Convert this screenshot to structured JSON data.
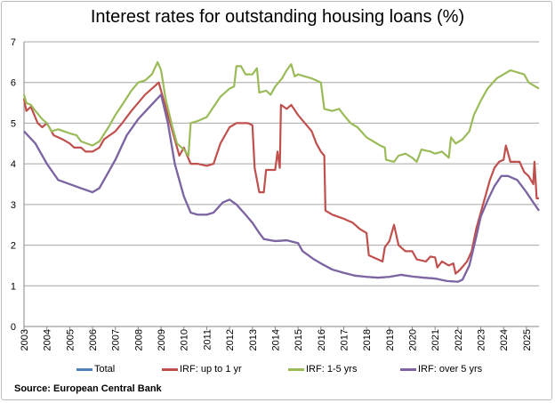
{
  "chart_data": {
    "type": "line",
    "title": "Interest rates for outstanding housing loans (%)",
    "source": "Source: European Central Bank",
    "xlabel": "",
    "ylabel": "",
    "ylim": [
      0,
      7
    ],
    "xlim": [
      2003,
      2025.55
    ],
    "yticks": [
      "0",
      "1",
      "2",
      "3",
      "4",
      "5",
      "6",
      "7"
    ],
    "xticks": [
      "2003",
      "2004",
      "2005",
      "2006",
      "2007",
      "2008",
      "2009",
      "2010",
      "2011",
      "2012",
      "2013",
      "2014",
      "2015",
      "2016",
      "2017",
      "2018",
      "2019",
      "2020",
      "2021",
      "2022",
      "2023",
      "2024",
      "2025"
    ],
    "grid": true,
    "legend_position": "bottom",
    "series": [
      {
        "name": "Total",
        "color": "#4f81bd",
        "x": [
          2003.0,
          2003.5,
          2004.0,
          2004.5,
          2005.0,
          2005.5,
          2006.0,
          2006.3,
          2006.7,
          2007.0,
          2007.5,
          2008.0,
          2008.5,
          2009.0,
          2009.3,
          2009.6,
          2010.0,
          2010.3,
          2010.6,
          2011.0,
          2011.3,
          2011.7,
          2012.0,
          2012.3,
          2012.7,
          2013.0,
          2013.3,
          2013.5,
          2014.0,
          2014.5,
          2015.0,
          2015.2,
          2015.7,
          2016.0,
          2016.5,
          2017.0,
          2017.5,
          2018.0,
          2018.5,
          2019.0,
          2019.5,
          2020.0,
          2020.5,
          2021.0,
          2021.5,
          2022.0,
          2022.2,
          2022.5,
          2022.8,
          2023.0,
          2023.3,
          2023.6,
          2023.9,
          2024.2,
          2024.6,
          2025.0,
          2025.3,
          2025.55
        ],
        "y": [
          4.8,
          4.5,
          4.0,
          3.6,
          3.5,
          3.4,
          3.3,
          3.4,
          3.8,
          4.1,
          4.7,
          5.1,
          5.4,
          5.7,
          5.0,
          4.0,
          3.2,
          2.8,
          2.75,
          2.75,
          2.8,
          3.05,
          3.12,
          3.0,
          2.75,
          2.55,
          2.3,
          2.15,
          2.1,
          2.12,
          2.05,
          1.85,
          1.65,
          1.55,
          1.4,
          1.32,
          1.25,
          1.22,
          1.2,
          1.22,
          1.27,
          1.23,
          1.2,
          1.18,
          1.12,
          1.1,
          1.15,
          1.5,
          2.2,
          2.7,
          3.1,
          3.45,
          3.7,
          3.7,
          3.6,
          3.3,
          3.05,
          2.85
        ]
      },
      {
        "name": "IRF: up to 1 yr",
        "color": "#c0504d",
        "x": [
          2003.0,
          2003.1,
          2003.3,
          2003.6,
          2003.8,
          2004.0,
          2004.3,
          2004.7,
          2005.0,
          2005.2,
          2005.5,
          2005.7,
          2006.0,
          2006.3,
          2006.5,
          2007.0,
          2007.3,
          2007.7,
          2008.0,
          2008.3,
          2008.7,
          2008.9,
          2009.0,
          2009.3,
          2009.6,
          2009.8,
          2010.0,
          2010.3,
          2010.6,
          2011.0,
          2011.3,
          2011.6,
          2012.0,
          2012.3,
          2012.5,
          2012.8,
          2013.0,
          2013.1,
          2013.3,
          2013.5,
          2013.6,
          2014.0,
          2014.1,
          2014.2,
          2014.25,
          2014.5,
          2014.7,
          2015.0,
          2015.3,
          2015.6,
          2015.8,
          2016.0,
          2016.15,
          2016.2,
          2016.5,
          2017.0,
          2017.4,
          2017.7,
          2018.0,
          2018.1,
          2018.5,
          2018.7,
          2018.8,
          2019.0,
          2019.2,
          2019.4,
          2019.7,
          2020.0,
          2020.2,
          2020.6,
          2020.8,
          2021.0,
          2021.1,
          2021.3,
          2021.6,
          2021.8,
          2021.9,
          2022.1,
          2022.4,
          2022.6,
          2022.8,
          2023.0,
          2023.2,
          2023.4,
          2023.6,
          2023.8,
          2024.0,
          2024.1,
          2024.3,
          2024.7,
          2024.9,
          2025.1,
          2025.3,
          2025.35,
          2025.45,
          2025.55
        ],
        "y": [
          5.6,
          5.3,
          5.4,
          5.0,
          4.9,
          5.0,
          4.7,
          4.6,
          4.5,
          4.4,
          4.4,
          4.3,
          4.3,
          4.4,
          4.6,
          4.8,
          5.0,
          5.3,
          5.5,
          5.7,
          5.9,
          6.0,
          5.8,
          5.2,
          4.6,
          4.2,
          4.4,
          4.0,
          4.0,
          3.95,
          4.0,
          4.5,
          4.9,
          5.0,
          5.0,
          5.0,
          4.95,
          3.9,
          3.3,
          3.3,
          3.85,
          3.85,
          4.3,
          3.9,
          5.45,
          5.35,
          5.45,
          5.2,
          5.0,
          4.8,
          4.5,
          4.3,
          4.2,
          2.85,
          2.75,
          2.65,
          2.55,
          2.4,
          2.3,
          1.75,
          1.65,
          1.6,
          1.95,
          2.1,
          2.5,
          2.0,
          1.85,
          1.85,
          1.65,
          1.6,
          1.72,
          1.7,
          1.45,
          1.6,
          1.5,
          1.55,
          1.3,
          1.4,
          1.6,
          1.85,
          2.4,
          2.8,
          3.2,
          3.6,
          3.9,
          4.05,
          4.1,
          4.45,
          4.05,
          4.05,
          3.8,
          3.7,
          3.5,
          4.05,
          3.15,
          3.15
        ]
      },
      {
        "name": "IRF: 1-5 yrs",
        "color": "#9bbb59",
        "x": [
          2003.0,
          2003.1,
          2003.3,
          2003.5,
          2003.8,
          2004.0,
          2004.2,
          2004.5,
          2005.0,
          2005.3,
          2005.5,
          2006.0,
          2006.3,
          2006.7,
          2007.0,
          2007.3,
          2007.7,
          2008.0,
          2008.3,
          2008.6,
          2008.85,
          2009.0,
          2009.2,
          2009.5,
          2009.7,
          2010.0,
          2010.2,
          2010.3,
          2010.6,
          2011.0,
          2011.3,
          2011.6,
          2012.0,
          2012.2,
          2012.3,
          2012.5,
          2012.7,
          2013.0,
          2013.2,
          2013.3,
          2013.6,
          2013.8,
          2014.0,
          2014.3,
          2014.5,
          2014.7,
          2014.85,
          2015.0,
          2015.3,
          2015.6,
          2016.0,
          2016.15,
          2016.5,
          2016.8,
          2017.0,
          2017.3,
          2017.6,
          2018.0,
          2018.3,
          2018.6,
          2018.8,
          2018.85,
          2019.2,
          2019.4,
          2019.7,
          2020.0,
          2020.2,
          2020.4,
          2020.8,
          2021.0,
          2021.3,
          2021.6,
          2021.7,
          2021.9,
          2022.2,
          2022.5,
          2022.7,
          2023.0,
          2023.3,
          2023.7,
          2024.0,
          2024.3,
          2024.6,
          2024.9,
          2025.1,
          2025.4,
          2025.55
        ],
        "y": [
          5.7,
          5.5,
          5.45,
          5.3,
          5.1,
          5.0,
          4.8,
          4.85,
          4.75,
          4.7,
          4.55,
          4.45,
          4.55,
          4.9,
          5.2,
          5.45,
          5.8,
          6.0,
          6.05,
          6.2,
          6.5,
          6.3,
          5.6,
          4.9,
          4.5,
          4.35,
          4.2,
          5.0,
          5.05,
          5.15,
          5.4,
          5.65,
          5.85,
          5.9,
          6.4,
          6.4,
          6.2,
          6.2,
          6.35,
          5.75,
          5.8,
          5.7,
          5.9,
          6.1,
          6.3,
          6.45,
          6.15,
          6.2,
          6.15,
          6.1,
          6.0,
          5.35,
          5.3,
          5.35,
          5.2,
          5.0,
          4.9,
          4.65,
          4.55,
          4.45,
          4.4,
          4.1,
          4.05,
          4.2,
          4.25,
          4.15,
          4.05,
          4.35,
          4.3,
          4.25,
          4.3,
          4.15,
          4.65,
          4.5,
          4.6,
          4.8,
          5.2,
          5.55,
          5.85,
          6.1,
          6.2,
          6.3,
          6.25,
          6.2,
          6.0,
          5.9,
          5.85
        ]
      },
      {
        "name": "IRF: over 5 yrs",
        "color": "#8064a2",
        "x": [
          2003.0,
          2003.5,
          2004.0,
          2004.5,
          2005.0,
          2005.5,
          2006.0,
          2006.3,
          2006.7,
          2007.0,
          2007.5,
          2008.0,
          2008.5,
          2009.0,
          2009.3,
          2009.6,
          2010.0,
          2010.3,
          2010.6,
          2011.0,
          2011.3,
          2011.7,
          2012.0,
          2012.3,
          2012.7,
          2013.0,
          2013.3,
          2013.5,
          2014.0,
          2014.5,
          2015.0,
          2015.2,
          2015.7,
          2016.0,
          2016.5,
          2017.0,
          2017.5,
          2018.0,
          2018.5,
          2019.0,
          2019.5,
          2020.0,
          2020.5,
          2021.0,
          2021.5,
          2022.0,
          2022.2,
          2022.5,
          2022.8,
          2023.0,
          2023.3,
          2023.6,
          2023.9,
          2024.2,
          2024.6,
          2025.0,
          2025.3,
          2025.55
        ],
        "y": [
          4.8,
          4.5,
          4.0,
          3.6,
          3.5,
          3.4,
          3.3,
          3.4,
          3.8,
          4.1,
          4.7,
          5.1,
          5.4,
          5.7,
          5.0,
          4.0,
          3.2,
          2.8,
          2.75,
          2.75,
          2.8,
          3.05,
          3.12,
          3.0,
          2.75,
          2.55,
          2.3,
          2.15,
          2.1,
          2.12,
          2.05,
          1.85,
          1.65,
          1.55,
          1.4,
          1.32,
          1.25,
          1.22,
          1.2,
          1.22,
          1.27,
          1.23,
          1.2,
          1.18,
          1.12,
          1.1,
          1.15,
          1.5,
          2.2,
          2.7,
          3.1,
          3.45,
          3.7,
          3.7,
          3.6,
          3.3,
          3.05,
          2.85
        ]
      }
    ]
  }
}
